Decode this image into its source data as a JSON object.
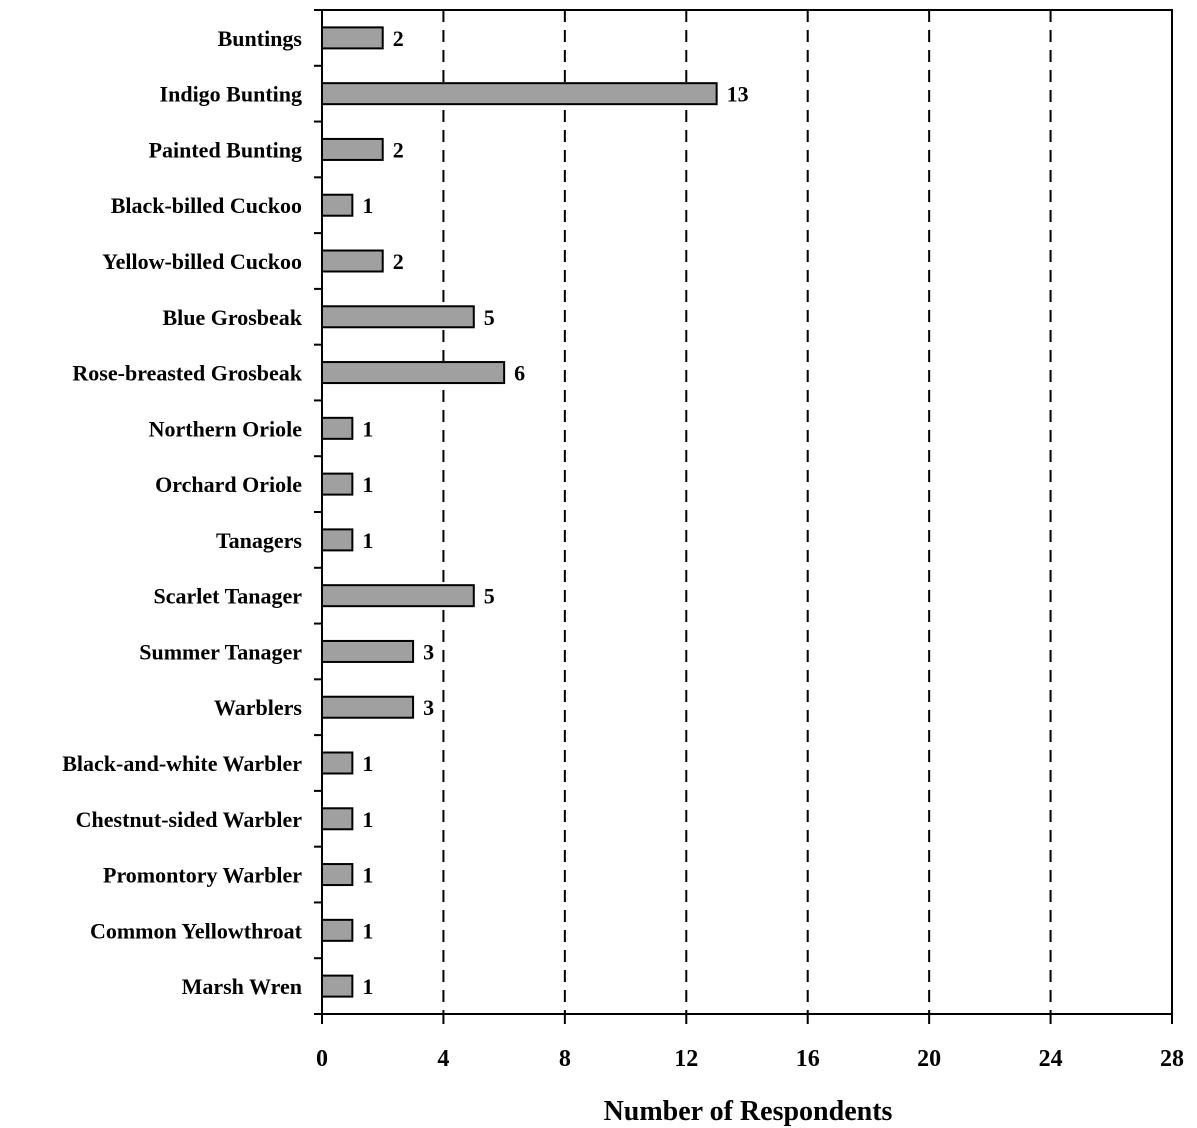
{
  "chart_data": {
    "type": "bar",
    "orientation": "horizontal",
    "categories": [
      "Buntings",
      "Indigo Bunting",
      "Painted Bunting",
      "Black-billed Cuckoo",
      "Yellow-billed Cuckoo",
      "Blue Grosbeak",
      "Rose-breasted Grosbeak",
      "Northern Oriole",
      "Orchard Oriole",
      "Tanagers",
      "Scarlet Tanager",
      "Summer Tanager",
      "Warblers",
      "Black-and-white Warbler",
      "Chestnut-sided Warbler",
      "Promontory Warbler",
      "Common Yellowthroat",
      "Marsh Wren"
    ],
    "values": [
      2,
      13,
      2,
      1,
      2,
      5,
      6,
      1,
      1,
      1,
      5,
      3,
      3,
      1,
      1,
      1,
      1,
      1
    ],
    "xlabel": "Number of Respondents",
    "xlim": [
      0,
      28
    ],
    "xticks": [
      0,
      4,
      8,
      12,
      16,
      20,
      24,
      28
    ],
    "grid": "vertical-dashed",
    "bar_color": "#a0a0a0",
    "bar_edge_color": "#000000"
  }
}
